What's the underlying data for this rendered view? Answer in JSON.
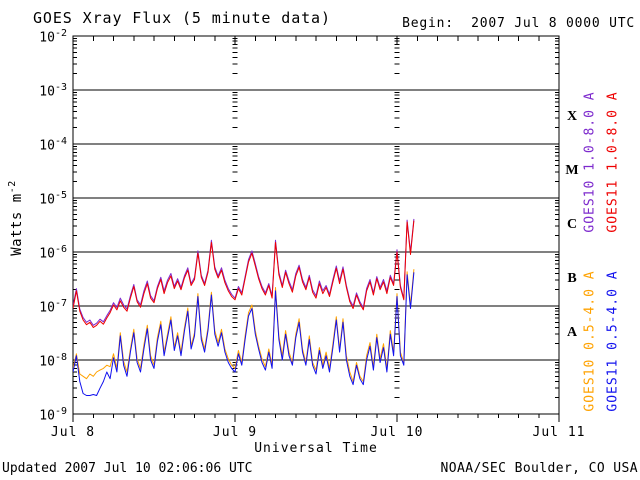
{
  "header": {
    "title": "GOES Xray Flux (5 minute data)",
    "begin_label": "Begin:  2007 Jul 8 0000 UTC"
  },
  "footer": {
    "updated": "Updated 2007 Jul 10 02:06:06 UTC",
    "source": "NOAA/SEC Boulder, CO USA"
  },
  "chart_data": {
    "type": "line",
    "title": "GOES Xray Flux (5 minute data)",
    "x_axis": {
      "title": "Universal Time",
      "unit": "hours since 2007 Jul 8 0000 UTC",
      "range_hours": [
        0,
        72
      ],
      "minor_tick_hours": 3,
      "major_tick_hours": 24,
      "gridline_hours": [
        24,
        48
      ],
      "tick_labels": [
        {
          "label": "Jul 8",
          "hour": 0
        },
        {
          "label": "Jul 9",
          "hour": 24
        },
        {
          "label": "Jul 10",
          "hour": 48
        },
        {
          "label": "Jul 11",
          "hour": 72
        }
      ]
    },
    "y_axis": {
      "title_prefix": "Watts m",
      "title_exponent": "-2",
      "scale": "log",
      "range": [
        1e-09,
        0.01
      ],
      "tick_base": "10",
      "tick_exponents": [
        -2,
        -3,
        -4,
        -5,
        -6,
        -7,
        -8,
        -9
      ],
      "grid": true
    },
    "flare_classes": [
      {
        "label": "X",
        "flux_range": [
          0.0001,
          0.001
        ]
      },
      {
        "label": "M",
        "flux_range": [
          1e-05,
          0.0001
        ]
      },
      {
        "label": "C",
        "flux_range": [
          1e-06,
          1e-05
        ]
      },
      {
        "label": "B",
        "flux_range": [
          1e-07,
          1e-06
        ]
      },
      {
        "label": "A",
        "flux_range": [
          1e-08,
          1e-07
        ]
      }
    ],
    "legend_position": "right-rotated",
    "legend": [
      {
        "label": "GOES10 1.0-8.0 A",
        "color": "#7d2acd",
        "group": "long",
        "column": 0
      },
      {
        "label": "GOES11 1.0-8.0 A",
        "color": "#ee0000",
        "group": "long",
        "column": 1
      },
      {
        "label": "GOES10 0.5-4.0 A",
        "color": "#ffa200",
        "group": "short",
        "column": 0
      },
      {
        "label": "GOES11 0.5-4.0 A",
        "color": "#1111ee",
        "group": "short",
        "column": 1
      }
    ],
    "series": [
      {
        "name": "GOES10 1.0-8.0 A",
        "color": "#7d2acd",
        "t_start_hours": 0,
        "t_step_hours": 0.5,
        "values": [
          1e-07,
          2.1e-07,
          8.8e-08,
          6.1e-08,
          5e-08,
          5.5e-08,
          4.4e-08,
          4.8e-08,
          5.7e-08,
          5.1e-08,
          6.6e-08,
          8.3e-08,
          1.15e-07,
          9.4e-08,
          1.4e-07,
          1.05e-07,
          8.8e-08,
          1.55e-07,
          2.5e-07,
          1.3e-07,
          1.05e-07,
          1.9e-07,
          2.9e-07,
          1.55e-07,
          1.25e-07,
          2.3e-07,
          3.4e-07,
          1.9e-07,
          3e-07,
          4e-07,
          2.3e-07,
          3.2e-07,
          2.2e-07,
          3.6e-07,
          5.1e-07,
          2.6e-07,
          3.4e-07,
          1.05e-06,
          3.7e-07,
          2.6e-07,
          4.6e-07,
          1.65e-06,
          5.3e-07,
          3.6e-07,
          5.1e-07,
          3e-07,
          2.1e-07,
          1.65e-07,
          1.4e-07,
          2.3e-07,
          1.75e-07,
          3.5e-07,
          7.2e-07,
          1.05e-06,
          6.1e-07,
          3.5e-07,
          2.3e-07,
          1.75e-07,
          2.6e-07,
          1.55e-07,
          1.65e-06,
          4.2e-07,
          2.4e-07,
          4.6e-07,
          2.9e-07,
          2e-07,
          4e-07,
          5.7e-07,
          3.1e-07,
          2.2e-07,
          3.7e-07,
          2e-07,
          1.55e-07,
          2.9e-07,
          1.9e-07,
          2.4e-07,
          1.65e-07,
          3.1e-07,
          5.5e-07,
          2.9e-07,
          5.3e-07,
          2.4e-07,
          1.3e-07,
          1e-07,
          1.75e-07,
          1.2e-07,
          9.4e-08,
          2.1e-07,
          3.1e-07,
          1.75e-07,
          3.5e-07,
          2.2e-07,
          3.1e-07,
          1.9e-07,
          3.7e-07,
          2.6e-07,
          1.1e-06,
          2.4e-07,
          1.4e-07,
          3.9e-06,
          1e-06,
          4.1e-06
        ]
      },
      {
        "name": "GOES11 1.0-8.0 A",
        "color": "#ee0000",
        "t_start_hours": 0,
        "t_step_hours": 0.5,
        "values": [
          9e-08,
          1.9e-07,
          8e-08,
          5.5e-08,
          4.5e-08,
          5e-08,
          4e-08,
          4.4e-08,
          5.2e-08,
          4.6e-08,
          6e-08,
          7.5e-08,
          1.05e-07,
          8.5e-08,
          1.25e-07,
          9.5e-08,
          8e-08,
          1.4e-07,
          2.3e-07,
          1.2e-07,
          9.5e-08,
          1.7e-07,
          2.6e-07,
          1.4e-07,
          1.15e-07,
          2.1e-07,
          3.1e-07,
          1.7e-07,
          2.7e-07,
          3.6e-07,
          2.1e-07,
          2.9e-07,
          2e-07,
          3.3e-07,
          4.6e-07,
          2.4e-07,
          3.1e-07,
          9.5e-07,
          3.4e-07,
          2.4e-07,
          4.2e-07,
          1.5e-06,
          4.8e-07,
          3.3e-07,
          4.6e-07,
          2.7e-07,
          1.9e-07,
          1.5e-07,
          1.3e-07,
          2.1e-07,
          1.6e-07,
          3.2e-07,
          6.5e-07,
          9.5e-07,
          5.5e-07,
          3.2e-07,
          2.1e-07,
          1.6e-07,
          2.4e-07,
          1.4e-07,
          1.5e-06,
          3.8e-07,
          2.2e-07,
          4.2e-07,
          2.6e-07,
          1.8e-07,
          3.6e-07,
          5.2e-07,
          2.8e-07,
          2e-07,
          3.4e-07,
          1.8e-07,
          1.4e-07,
          2.6e-07,
          1.7e-07,
          2.2e-07,
          1.5e-07,
          2.8e-07,
          5e-07,
          2.6e-07,
          4.8e-07,
          2.2e-07,
          1.2e-07,
          9e-08,
          1.6e-07,
          1.1e-07,
          8.5e-08,
          1.9e-07,
          2.8e-07,
          1.6e-07,
          3.2e-07,
          2e-07,
          2.8e-07,
          1.7e-07,
          3.4e-07,
          2.4e-07,
          1e-06,
          2.2e-07,
          1.3e-07,
          3.6e-06,
          9e-07,
          3.8e-06
        ]
      },
      {
        "name": "GOES10 0.5-4.0 A",
        "color": "#ffa200",
        "t_start_hours": 0,
        "t_step_hours": 0.5,
        "values": [
          7e-09,
          1.3e-08,
          5.5e-09,
          5e-09,
          4.5e-09,
          5.5e-09,
          5e-09,
          6e-09,
          6.5e-09,
          7e-09,
          8e-09,
          7.5e-09,
          1.3e-08,
          7e-09,
          3.2e-08,
          9.5e-09,
          6e-09,
          1.6e-08,
          3.7e-08,
          1.05e-08,
          7e-09,
          1.9e-08,
          4.4e-08,
          1.2e-08,
          8e-09,
          2.6e-08,
          5.2e-08,
          1.4e-08,
          3e-08,
          6.3e-08,
          1.7e-08,
          3.2e-08,
          1.4e-08,
          3.9e-08,
          9.2e-08,
          1.8e-08,
          3.2e-08,
          1.7e-07,
          2.8e-08,
          1.6e-08,
          4e-08,
          1.8e-07,
          3.5e-08,
          2.1e-08,
          3.7e-08,
          1.6e-08,
          1.05e-08,
          8e-09,
          7e-09,
          1.5e-08,
          9e-09,
          2.8e-08,
          7.5e-08,
          1.05e-07,
          3.5e-08,
          1.8e-08,
          1.05e-08,
          7.5e-09,
          1.6e-08,
          8e-09,
          2.2e-07,
          2.8e-08,
          1.2e-08,
          3.5e-08,
          1.4e-08,
          9e-09,
          3e-08,
          5.8e-08,
          1.6e-08,
          9e-09,
          2.8e-08,
          9e-09,
          6.5e-09,
          1.7e-08,
          8e-09,
          1.4e-08,
          7e-09,
          2e-08,
          6.3e-08,
          1.6e-08,
          5.8e-08,
          1.2e-08,
          6e-09,
          4e-09,
          9e-09,
          5e-09,
          4e-09,
          1.2e-08,
          2.1e-08,
          7.5e-09,
          3e-08,
          1.05e-08,
          2e-08,
          7e-09,
          3.5e-08,
          1.4e-08,
          1.7e-07,
          1.4e-08,
          9e-09,
          4.3e-07,
          1.05e-07,
          4.8e-07
        ]
      },
      {
        "name": "GOES11 0.5-4.0 A",
        "color": "#1111ee",
        "t_start_hours": 0,
        "t_step_hours": 0.5,
        "values": [
          6e-09,
          1.2e-08,
          4e-09,
          2.4e-09,
          2.2e-09,
          2.2e-09,
          2.3e-09,
          2.2e-09,
          3e-09,
          4e-09,
          6e-09,
          4.5e-09,
          1.1e-08,
          6e-09,
          2.8e-08,
          8e-09,
          5e-09,
          1.4e-08,
          3.2e-08,
          9e-09,
          6e-09,
          1.6e-08,
          3.8e-08,
          1e-08,
          7e-09,
          2.2e-08,
          4.5e-08,
          1.2e-08,
          2.6e-08,
          5.5e-08,
          1.5e-08,
          2.8e-08,
          1.2e-08,
          3.4e-08,
          8e-08,
          1.6e-08,
          2.8e-08,
          1.5e-07,
          2.4e-08,
          1.4e-08,
          3.5e-08,
          1.6e-07,
          3e-08,
          1.8e-08,
          3.2e-08,
          1.4e-08,
          9e-09,
          7e-09,
          6e-09,
          1.3e-08,
          8e-09,
          2.4e-08,
          6.5e-08,
          9e-08,
          3e-08,
          1.6e-08,
          9e-09,
          6.5e-09,
          1.4e-08,
          7e-09,
          1.9e-07,
          2.4e-08,
          1e-08,
          3e-08,
          1.2e-08,
          8e-09,
          2.6e-08,
          5e-08,
          1.4e-08,
          8e-09,
          2.4e-08,
          8e-09,
          5.5e-09,
          1.5e-08,
          7e-09,
          1.2e-08,
          6e-09,
          1.7e-08,
          5.5e-08,
          1.4e-08,
          5e-08,
          1e-08,
          5e-09,
          3.5e-09,
          8e-09,
          4.5e-09,
          3.5e-09,
          1e-08,
          1.8e-08,
          6.5e-09,
          2.6e-08,
          9e-09,
          1.7e-08,
          6e-09,
          3e-08,
          1.2e-08,
          1.5e-07,
          1.2e-08,
          8e-09,
          3.8e-07,
          9e-08,
          4.2e-07
        ]
      }
    ]
  }
}
